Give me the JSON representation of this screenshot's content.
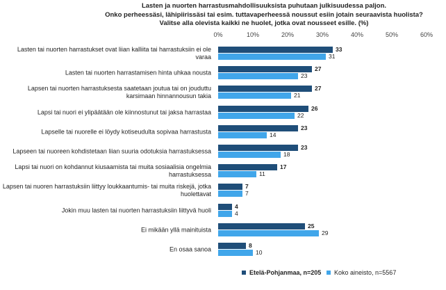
{
  "chart_data": {
    "type": "bar",
    "orientation": "horizontal",
    "title": [
      "Lasten ja nuorten harrastusmahdollisuuksista  puhutaan julkisuudessa  paljon.",
      "Onko perheessäsi, lähipiirissäsi tai esim. tuttavaperheessä noussut esiin jotain seuraavista huolista?",
      "Valitse alla olevista kaikki ne huolet, jotka ovat nousseet esille. (%)"
    ],
    "categories": [
      "Lasten tai nuorten harrastukset ovat liian kalliita tai harrastuksiin ei ole varaa",
      "Lasten tai nuorten harrastamisen hinta uhkaa nousta",
      "Lapsen tai nuorten harrastuksesta saatetaan joutua tai on jouduttu karsimaan hinnannousun takia",
      "Lapsi tai nuori ei ylipäätään ole kiinnostunut tai jaksa harrastaa",
      "Lapselle tai nuorelle ei löydy kotiseudulta sopivaa harrastusta",
      "Lapseen tai nuoreen kohdistetaan liian suuria odotuksia harrastuksessa",
      "Lapsi tai nuori on kohdannut kiusaamista tai muita sosiaalisia ongelmia harrastuksessa",
      "Lapsen tai nuoren harrastuksiin liittyy loukkaantumis- tai muita riskejä, jotka huolettavat",
      "Jokin muu lasten tai nuorten harrastuksiin liittyvä huoli",
      "Ei mikään yllä mainituista",
      "En osaa sanoa"
    ],
    "series": [
      {
        "name": "Etelä-Pohjanmaa, n=205",
        "color": "#1F4E79",
        "values": [
          33,
          27,
          27,
          26,
          23,
          23,
          17,
          7,
          4,
          25,
          8
        ]
      },
      {
        "name": "Koko aineisto, n=5567",
        "color": "#41A6EA",
        "values": [
          31,
          23,
          21,
          22,
          14,
          18,
          11,
          7,
          4,
          29,
          10
        ]
      }
    ],
    "xlim": [
      0,
      60
    ],
    "xticks": [
      "0%",
      "10%",
      "20%",
      "30%",
      "40%",
      "50%",
      "60%"
    ],
    "grid": false,
    "legend": "bottom"
  }
}
